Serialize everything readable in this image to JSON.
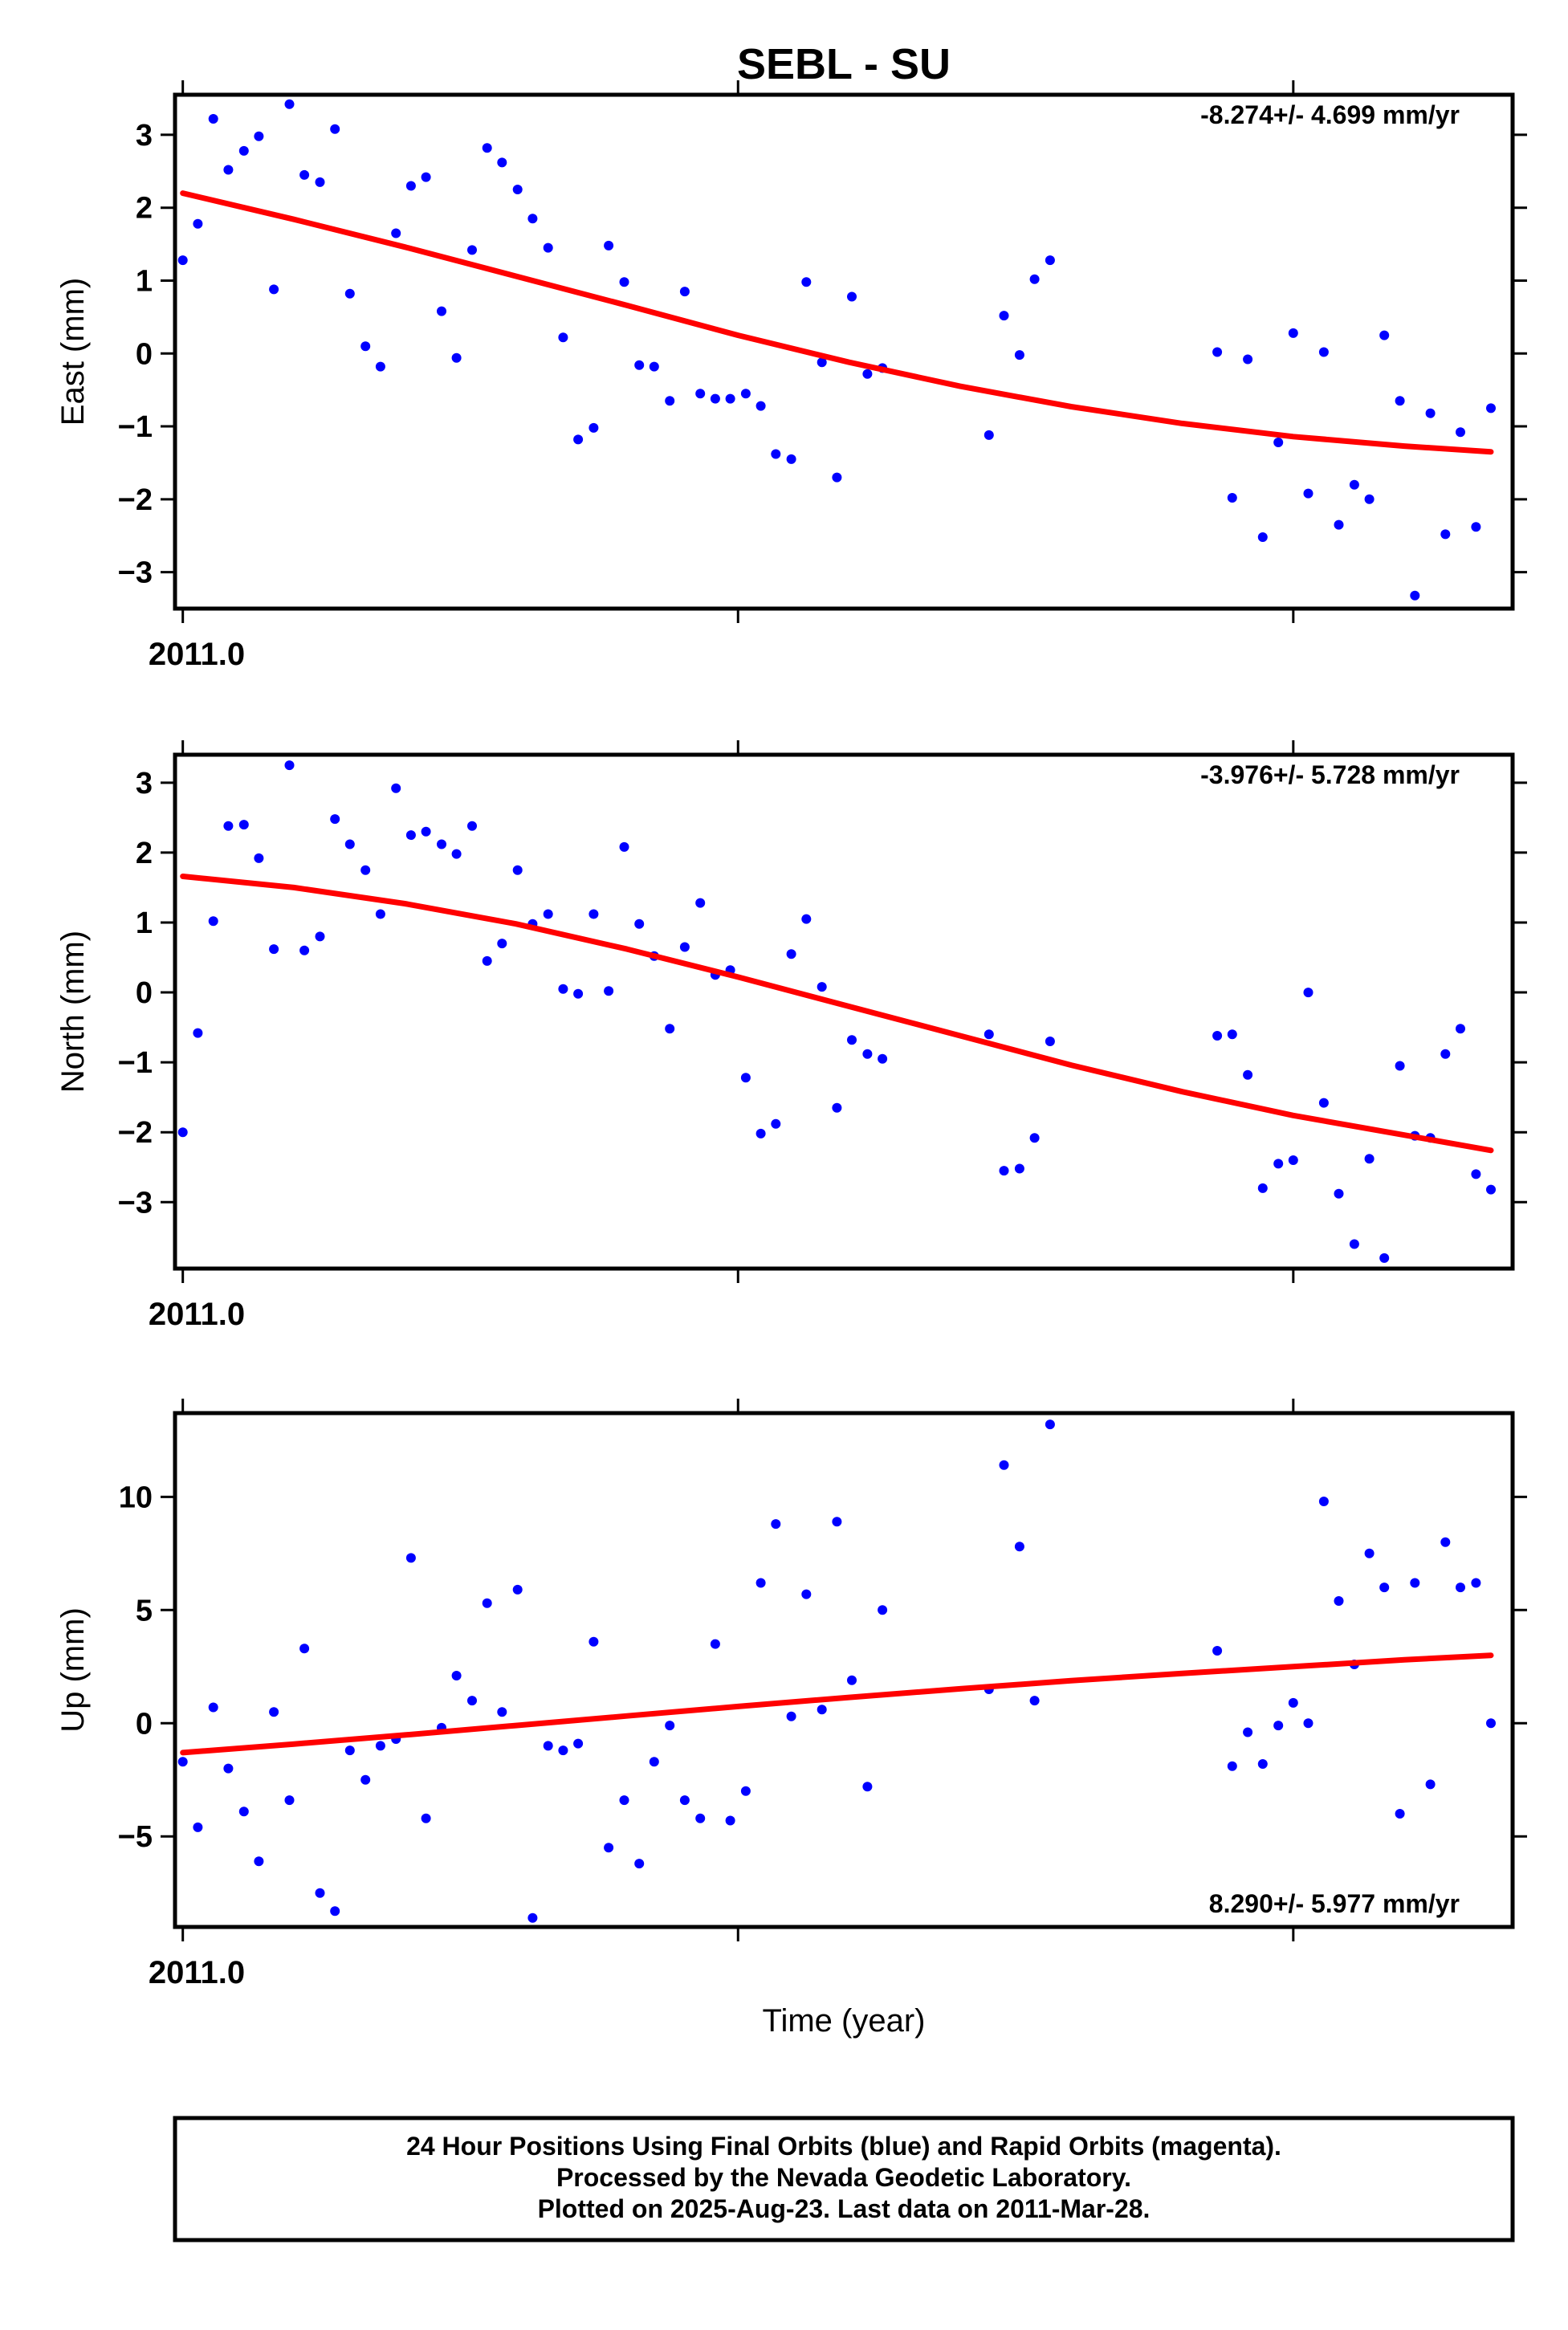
{
  "title": "SEBL - SU",
  "xlabel": "Time (year)",
  "x_tick_label": "2011.0",
  "footer": {
    "line1": "24 Hour Positions Using Final Orbits (blue) and Rapid Orbits (magenta).",
    "line2": "Processed by the Nevada Geodetic Laboratory.",
    "line3": "Plotted on 2025-Aug-23. Last data on 2011-Mar-28."
  },
  "colors": {
    "points": "#0000ff",
    "fit": "#ff0000",
    "frame": "#000000"
  },
  "chart_data": [
    {
      "type": "scatter",
      "title": "SEBL - SU",
      "ylabel": "East (mm)",
      "rate": "-8.274+/- 4.699 mm/yr",
      "xlim": [
        2010.9986,
        2011.2395
      ],
      "ylim": [
        -3.5,
        3.55
      ],
      "yticks": [
        -3,
        -2,
        -1,
        0,
        1,
        2,
        3
      ],
      "x_tick_positions": [
        2011.0,
        2011.1,
        2011.2
      ],
      "x_tick_labels": [
        "2011.0",
        "",
        ""
      ],
      "x": [
        2011.0,
        2011.0027,
        2011.0055,
        2011.0082,
        2011.011,
        2011.0137,
        2011.0164,
        2011.0192,
        2011.0219,
        2011.0247,
        2011.0274,
        2011.0301,
        2011.0329,
        2011.0356,
        2011.0384,
        2011.0411,
        2011.0438,
        2011.0466,
        2011.0493,
        2011.0521,
        2011.0548,
        2011.0575,
        2011.0603,
        2011.063,
        2011.0658,
        2011.0685,
        2011.0712,
        2011.074,
        2011.0767,
        2011.0795,
        2011.0822,
        2011.0849,
        2011.0877,
        2011.0904,
        2011.0932,
        2011.0959,
        2011.0986,
        2011.1014,
        2011.1041,
        2011.1068,
        2011.1096,
        2011.1123,
        2011.1151,
        2011.1178,
        2011.1205,
        2011.1233,
        2011.126,
        2011.1452,
        2011.1479,
        2011.1507,
        2011.1534,
        2011.1562,
        2011.1863,
        2011.189,
        2011.1918,
        2011.1945,
        2011.1973,
        2011.2,
        2011.2027,
        2011.2055,
        2011.2082,
        2011.211,
        2011.2137,
        2011.2164,
        2011.2192,
        2011.2219,
        2011.2247,
        2011.2274,
        2011.2301,
        2011.2329,
        2011.2356
      ],
      "y": [
        1.28,
        1.78,
        3.22,
        2.52,
        2.78,
        2.98,
        0.88,
        3.42,
        2.45,
        2.35,
        3.08,
        0.82,
        0.1,
        -0.18,
        1.65,
        2.3,
        2.42,
        0.58,
        -0.06,
        1.42,
        2.82,
        2.62,
        2.25,
        1.85,
        1.45,
        0.22,
        -1.18,
        -1.02,
        1.48,
        0.98,
        -0.16,
        -0.18,
        -0.65,
        0.85,
        -0.55,
        -0.62,
        -0.62,
        -0.55,
        -0.72,
        -1.38,
        -1.45,
        0.98,
        -0.12,
        -1.7,
        0.78,
        -0.28,
        -0.2,
        -1.12,
        0.52,
        -0.02,
        1.02,
        1.28,
        0.02,
        -1.98,
        -0.08,
        -2.52,
        -1.22,
        0.28,
        -1.92,
        0.02,
        -2.35,
        -1.8,
        -2.0,
        0.25,
        -0.65,
        -3.32,
        -0.82,
        -2.48,
        -1.08,
        -2.38,
        -0.75
      ],
      "fit_x": [
        2011.0,
        2011.02,
        2011.04,
        2011.06,
        2011.08,
        2011.1,
        2011.12,
        2011.14,
        2011.16,
        2011.18,
        2011.2,
        2011.22,
        2011.2356
      ],
      "fit_y": [
        2.2,
        1.84,
        1.46,
        1.06,
        0.66,
        0.25,
        -0.12,
        -0.45,
        -0.73,
        -0.96,
        -1.14,
        -1.27,
        -1.35
      ]
    },
    {
      "type": "scatter",
      "ylabel": "North (mm)",
      "rate": "-3.976+/- 5.728 mm/yr",
      "xlim": [
        2010.9986,
        2011.2395
      ],
      "ylim": [
        -3.95,
        3.4
      ],
      "yticks": [
        -3,
        -2,
        -1,
        0,
        1,
        2,
        3
      ],
      "x_tick_positions": [
        2011.0,
        2011.1,
        2011.2
      ],
      "x_tick_labels": [
        "2011.0",
        "",
        ""
      ],
      "x": [
        2011.0,
        2011.0027,
        2011.0055,
        2011.0082,
        2011.011,
        2011.0137,
        2011.0164,
        2011.0192,
        2011.0219,
        2011.0247,
        2011.0274,
        2011.0301,
        2011.0329,
        2011.0356,
        2011.0384,
        2011.0411,
        2011.0438,
        2011.0466,
        2011.0493,
        2011.0521,
        2011.0548,
        2011.0575,
        2011.0603,
        2011.063,
        2011.0658,
        2011.0685,
        2011.0712,
        2011.074,
        2011.0767,
        2011.0795,
        2011.0822,
        2011.0849,
        2011.0877,
        2011.0904,
        2011.0932,
        2011.0959,
        2011.0986,
        2011.1014,
        2011.1041,
        2011.1068,
        2011.1096,
        2011.1123,
        2011.1151,
        2011.1178,
        2011.1205,
        2011.1233,
        2011.126,
        2011.1452,
        2011.1479,
        2011.1507,
        2011.1534,
        2011.1562,
        2011.1863,
        2011.189,
        2011.1918,
        2011.1945,
        2011.1973,
        2011.2,
        2011.2027,
        2011.2055,
        2011.2082,
        2011.211,
        2011.2137,
        2011.2164,
        2011.2192,
        2011.2219,
        2011.2247,
        2011.2274,
        2011.2301,
        2011.2329,
        2011.2356
      ],
      "y": [
        -2.0,
        -0.58,
        1.02,
        2.38,
        2.4,
        1.92,
        0.62,
        3.25,
        0.6,
        0.8,
        2.48,
        2.12,
        1.75,
        1.12,
        2.92,
        2.25,
        2.3,
        2.12,
        1.98,
        2.38,
        0.45,
        0.7,
        1.75,
        0.98,
        1.12,
        0.05,
        -0.02,
        1.12,
        0.02,
        2.08,
        0.98,
        0.52,
        -0.52,
        0.65,
        1.28,
        0.25,
        0.32,
        -1.22,
        -2.02,
        -1.88,
        0.55,
        1.05,
        0.08,
        -1.65,
        -0.68,
        -0.88,
        -0.95,
        -0.6,
        -2.55,
        -2.52,
        -2.08,
        -0.7,
        -0.62,
        -0.6,
        -1.18,
        -2.8,
        -2.45,
        -2.4,
        0.0,
        -1.58,
        -2.88,
        -3.6,
        -2.38,
        -3.8,
        -1.05,
        -2.05,
        -2.08,
        -0.88,
        -0.52,
        -2.6,
        -2.82
      ],
      "fit_x": [
        2011.0,
        2011.02,
        2011.04,
        2011.06,
        2011.08,
        2011.1,
        2011.12,
        2011.14,
        2011.16,
        2011.18,
        2011.2,
        2011.22,
        2011.2356
      ],
      "fit_y": [
        1.66,
        1.5,
        1.27,
        0.98,
        0.62,
        0.22,
        -0.2,
        -0.62,
        -1.04,
        -1.42,
        -1.76,
        -2.04,
        -2.26
      ]
    },
    {
      "type": "scatter",
      "ylabel": "Up (mm)",
      "rate": "8.290+/- 5.977 mm/yr",
      "xlim": [
        2010.9986,
        2011.2395
      ],
      "ylim": [
        -9.0,
        13.7
      ],
      "yticks": [
        -5,
        0,
        5,
        10
      ],
      "x_tick_positions": [
        2011.0,
        2011.1,
        2011.2
      ],
      "x_tick_labels": [
        "2011.0",
        "",
        ""
      ],
      "x": [
        2011.0,
        2011.0027,
        2011.0055,
        2011.0082,
        2011.011,
        2011.0137,
        2011.0164,
        2011.0192,
        2011.0219,
        2011.0247,
        2011.0274,
        2011.0301,
        2011.0329,
        2011.0356,
        2011.0384,
        2011.0411,
        2011.0438,
        2011.0466,
        2011.0493,
        2011.0521,
        2011.0548,
        2011.0575,
        2011.0603,
        2011.063,
        2011.0658,
        2011.0685,
        2011.0712,
        2011.074,
        2011.0767,
        2011.0795,
        2011.0822,
        2011.0849,
        2011.0877,
        2011.0904,
        2011.0932,
        2011.0959,
        2011.0986,
        2011.1014,
        2011.1041,
        2011.1068,
        2011.1096,
        2011.1123,
        2011.1151,
        2011.1178,
        2011.1205,
        2011.1233,
        2011.126,
        2011.1452,
        2011.1479,
        2011.1507,
        2011.1534,
        2011.1562,
        2011.1863,
        2011.189,
        2011.1918,
        2011.1945,
        2011.1973,
        2011.2,
        2011.2027,
        2011.2055,
        2011.2082,
        2011.211,
        2011.2137,
        2011.2164,
        2011.2192,
        2011.2219,
        2011.2247,
        2011.2274,
        2011.2301,
        2011.2329,
        2011.2356
      ],
      "y": [
        -1.7,
        -4.6,
        0.7,
        -2.0,
        -3.9,
        -6.1,
        0.5,
        -3.4,
        3.3,
        -7.5,
        -8.3,
        -1.2,
        -2.5,
        -1.0,
        -0.7,
        7.3,
        -4.2,
        -0.2,
        2.1,
        1.0,
        5.3,
        0.5,
        5.9,
        -8.6,
        -1.0,
        -1.2,
        -0.9,
        3.6,
        -5.5,
        -3.4,
        -6.2,
        -1.7,
        -0.1,
        -3.4,
        -4.2,
        3.5,
        -4.3,
        -3.0,
        6.2,
        8.8,
        0.3,
        5.7,
        0.6,
        8.9,
        1.9,
        -2.8,
        5.0,
        1.5,
        11.4,
        7.8,
        1.0,
        13.2,
        3.2,
        -1.9,
        -0.4,
        -1.8,
        -0.1,
        0.9,
        0.0,
        9.8,
        5.4,
        2.6,
        7.5,
        6.0,
        -4.0,
        6.2,
        -2.7,
        8.0,
        6.0,
        6.2,
        0.0
      ],
      "fit_x": [
        2011.0,
        2011.02,
        2011.04,
        2011.06,
        2011.08,
        2011.1,
        2011.12,
        2011.14,
        2011.16,
        2011.18,
        2011.2,
        2011.22,
        2011.2356
      ],
      "fit_y": [
        -1.3,
        -0.92,
        -0.52,
        -0.1,
        0.32,
        0.74,
        1.14,
        1.52,
        1.88,
        2.2,
        2.5,
        2.8,
        3.0
      ]
    }
  ]
}
